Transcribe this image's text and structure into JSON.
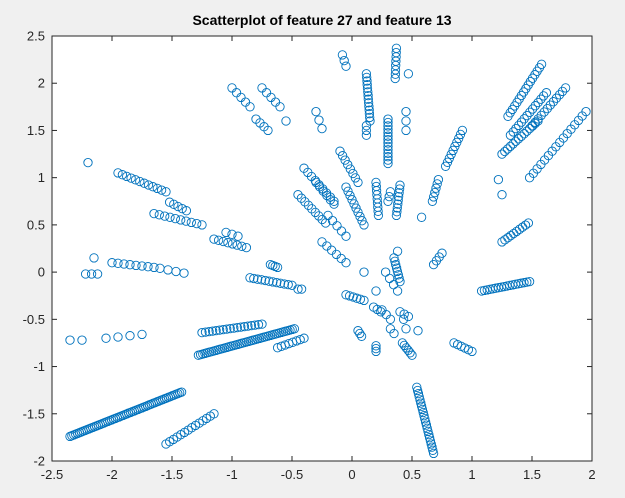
{
  "chart_data": {
    "type": "scatter",
    "title": "Scatterplot of feature 27 and feature 13",
    "xlabel": "",
    "ylabel": "",
    "xlim": [
      -2.5,
      2
    ],
    "ylim": [
      -2,
      2.5
    ],
    "xticks": [
      -2.5,
      -2,
      -1.5,
      -1,
      -0.5,
      0,
      0.5,
      1,
      1.5,
      2
    ],
    "yticks": [
      -2,
      -1.5,
      -1,
      -0.5,
      0,
      0.5,
      1,
      1.5,
      2,
      2.5
    ],
    "xtick_labels": [
      "-2.5",
      "-2",
      "-1.5",
      "-1",
      "-0.5",
      "0",
      "0.5",
      "1",
      "1.5",
      "2"
    ],
    "ytick_labels": [
      "-2",
      "-1.5",
      "-1",
      "-0.5",
      "0",
      "0.5",
      "1",
      "1.5",
      "2",
      "2.5"
    ],
    "grid": false,
    "marker": "open-circle",
    "marker_color": "#0072bd",
    "segments": [
      {
        "from": [
          -2.35,
          -1.74
        ],
        "to": [
          -1.42,
          -1.27
        ],
        "n": 60
      },
      {
        "from": [
          -1.55,
          -1.82
        ],
        "to": [
          -1.15,
          -1.5
        ],
        "n": 14
      },
      {
        "from": [
          -1.28,
          -0.88
        ],
        "to": [
          -0.48,
          -0.6
        ],
        "n": 45
      },
      {
        "from": [
          -1.25,
          -0.64
        ],
        "to": [
          -0.75,
          -0.55
        ],
        "n": 18
      },
      {
        "from": [
          -0.62,
          -0.8
        ],
        "to": [
          -0.4,
          -0.7
        ],
        "n": 8
      },
      {
        "from": [
          -1.75,
          -0.66
        ],
        "to": [
          -2.05,
          -0.7
        ],
        "n": 4
      },
      {
        "from": [
          -2.35,
          -0.72
        ],
        "to": [
          -2.25,
          -0.72
        ],
        "n": 2
      },
      {
        "from": [
          -1.95,
          1.05
        ],
        "to": [
          -1.55,
          0.85
        ],
        "n": 12
      },
      {
        "from": [
          -1.65,
          0.62
        ],
        "to": [
          -1.25,
          0.5
        ],
        "n": 10
      },
      {
        "from": [
          -1.52,
          0.74
        ],
        "to": [
          -1.38,
          0.65
        ],
        "n": 5
      },
      {
        "from": [
          -1.15,
          0.35
        ],
        "to": [
          -0.88,
          0.26
        ],
        "n": 8
      },
      {
        "from": [
          -1.05,
          0.42
        ],
        "to": [
          -0.95,
          0.38
        ],
        "n": 3
      },
      {
        "from": [
          -2.0,
          0.1
        ],
        "to": [
          -1.65,
          0.05
        ],
        "n": 8
      },
      {
        "from": [
          -2.22,
          -0.02
        ],
        "to": [
          -2.12,
          -0.02
        ],
        "n": 3
      },
      {
        "from": [
          -1.6,
          0.04
        ],
        "to": [
          -1.4,
          -0.01
        ],
        "n": 4
      },
      {
        "from": [
          -2.15,
          0.15
        ],
        "to": [
          -2.15,
          0.15
        ],
        "n": 1
      },
      {
        "from": [
          -2.2,
          1.16
        ],
        "to": [
          -2.2,
          1.16
        ],
        "n": 1
      },
      {
        "from": [
          -0.85,
          -0.06
        ],
        "to": [
          -0.5,
          -0.14
        ],
        "n": 12
      },
      {
        "from": [
          -0.68,
          0.08
        ],
        "to": [
          -0.62,
          0.05
        ],
        "n": 4
      },
      {
        "from": [
          -0.45,
          -0.18
        ],
        "to": [
          -0.42,
          -0.18
        ],
        "n": 2
      },
      {
        "from": [
          -1.0,
          1.95
        ],
        "to": [
          -0.85,
          1.75
        ],
        "n": 5
      },
      {
        "from": [
          -0.75,
          1.95
        ],
        "to": [
          -0.6,
          1.75
        ],
        "n": 5
      },
      {
        "from": [
          -0.8,
          1.62
        ],
        "to": [
          -0.7,
          1.5
        ],
        "n": 4
      },
      {
        "from": [
          -0.55,
          1.6
        ],
        "to": [
          -0.55,
          1.6
        ],
        "n": 1
      },
      {
        "from": [
          -0.3,
          1.7
        ],
        "to": [
          -0.25,
          1.52
        ],
        "n": 3
      },
      {
        "from": [
          -0.4,
          1.1
        ],
        "to": [
          -0.15,
          0.75
        ],
        "n": 9
      },
      {
        "from": [
          -0.45,
          0.82
        ],
        "to": [
          -0.22,
          0.52
        ],
        "n": 9
      },
      {
        "from": [
          -0.3,
          0.95
        ],
        "to": [
          -0.15,
          0.72
        ],
        "n": 6
      },
      {
        "from": [
          -0.2,
          0.6
        ],
        "to": [
          -0.05,
          0.38
        ],
        "n": 5
      },
      {
        "from": [
          -0.25,
          0.32
        ],
        "to": [
          -0.05,
          0.1
        ],
        "n": 6
      },
      {
        "from": [
          -0.1,
          1.28
        ],
        "to": [
          0.05,
          0.95
        ],
        "n": 8
      },
      {
        "from": [
          -0.05,
          0.9
        ],
        "to": [
          0.1,
          0.5
        ],
        "n": 10
      },
      {
        "from": [
          -0.08,
          2.3
        ],
        "to": [
          -0.05,
          2.18
        ],
        "n": 3
      },
      {
        "from": [
          0.12,
          2.1
        ],
        "to": [
          0.15,
          1.6
        ],
        "n": 14
      },
      {
        "from": [
          0.12,
          1.55
        ],
        "to": [
          0.12,
          1.45
        ],
        "n": 3
      },
      {
        "from": [
          0.2,
          0.95
        ],
        "to": [
          0.22,
          0.6
        ],
        "n": 9
      },
      {
        "from": [
          0.3,
          1.62
        ],
        "to": [
          0.3,
          1.15
        ],
        "n": 14
      },
      {
        "from": [
          0.37,
          2.37
        ],
        "to": [
          0.36,
          2.05
        ],
        "n": 8
      },
      {
        "from": [
          0.45,
          1.7
        ],
        "to": [
          0.45,
          1.5
        ],
        "n": 3
      },
      {
        "from": [
          0.4,
          0.92
        ],
        "to": [
          0.37,
          0.6
        ],
        "n": 9
      },
      {
        "from": [
          0.47,
          2.1
        ],
        "to": [
          0.47,
          2.1
        ],
        "n": 1
      },
      {
        "from": [
          0.32,
          0.85
        ],
        "to": [
          0.3,
          0.75
        ],
        "n": 3
      },
      {
        "from": [
          0.58,
          0.58
        ],
        "to": [
          0.58,
          0.58
        ],
        "n": 1
      },
      {
        "from": [
          0.67,
          0.75
        ],
        "to": [
          0.72,
          0.98
        ],
        "n": 6
      },
      {
        "from": [
          0.78,
          1.12
        ],
        "to": [
          0.92,
          1.5
        ],
        "n": 10
      },
      {
        "from": [
          0.68,
          0.08
        ],
        "to": [
          0.75,
          0.2
        ],
        "n": 4
      },
      {
        "from": [
          0.38,
          0.22
        ],
        "to": [
          0.38,
          0.22
        ],
        "n": 1
      },
      {
        "from": [
          0.35,
          0.15
        ],
        "to": [
          0.4,
          -0.1
        ],
        "n": 8
      },
      {
        "from": [
          0.28,
          0.0
        ],
        "to": [
          0.38,
          -0.2
        ],
        "n": 4
      },
      {
        "from": [
          0.1,
          0.0
        ],
        "to": [
          0.1,
          0.0
        ],
        "n": 1
      },
      {
        "from": [
          0.25,
          -0.4
        ],
        "to": [
          0.32,
          -0.5
        ],
        "n": 3
      },
      {
        "from": [
          0.4,
          -0.42
        ],
        "to": [
          0.47,
          -0.47
        ],
        "n": 3
      },
      {
        "from": [
          0.2,
          -0.2
        ],
        "to": [
          0.2,
          -0.2
        ],
        "n": 1
      },
      {
        "from": [
          -0.05,
          -0.24
        ],
        "to": [
          0.1,
          -0.3
        ],
        "n": 6
      },
      {
        "from": [
          0.05,
          -0.62
        ],
        "to": [
          0.08,
          -0.68
        ],
        "n": 3
      },
      {
        "from": [
          0.18,
          -0.37
        ],
        "to": [
          0.24,
          -0.42
        ],
        "n": 3
      },
      {
        "from": [
          0.2,
          -0.78
        ],
        "to": [
          0.2,
          -0.84
        ],
        "n": 3
      },
      {
        "from": [
          0.32,
          -0.6
        ],
        "to": [
          0.35,
          -0.65
        ],
        "n": 2
      },
      {
        "from": [
          0.43,
          -0.5
        ],
        "to": [
          0.45,
          -0.6
        ],
        "n": 2
      },
      {
        "from": [
          0.42,
          -0.75
        ],
        "to": [
          0.5,
          -0.88
        ],
        "n": 6
      },
      {
        "from": [
          0.55,
          -0.62
        ],
        "to": [
          0.55,
          -0.62
        ],
        "n": 1
      },
      {
        "from": [
          0.54,
          -1.22
        ],
        "to": [
          0.68,
          -1.92
        ],
        "n": 22
      },
      {
        "from": [
          0.85,
          -0.75
        ],
        "to": [
          1.0,
          -0.84
        ],
        "n": 6
      },
      {
        "from": [
          1.08,
          -0.2
        ],
        "to": [
          1.48,
          -0.1
        ],
        "n": 18
      },
      {
        "from": [
          1.25,
          0.32
        ],
        "to": [
          1.47,
          0.52
        ],
        "n": 10
      },
      {
        "from": [
          1.25,
          1.25
        ],
        "to": [
          1.55,
          1.6
        ],
        "n": 14
      },
      {
        "from": [
          1.48,
          1.0
        ],
        "to": [
          1.95,
          1.7
        ],
        "n": 16
      },
      {
        "from": [
          1.3,
          1.65
        ],
        "to": [
          1.58,
          2.2
        ],
        "n": 16
      },
      {
        "from": [
          1.5,
          1.55
        ],
        "to": [
          1.78,
          1.95
        ],
        "n": 12
      },
      {
        "from": [
          1.32,
          1.45
        ],
        "to": [
          1.62,
          1.9
        ],
        "n": 14
      },
      {
        "from": [
          1.22,
          0.98
        ],
        "to": [
          1.22,
          0.98
        ],
        "n": 1
      },
      {
        "from": [
          1.25,
          0.82
        ],
        "to": [
          1.25,
          0.82
        ],
        "n": 1
      }
    ]
  }
}
